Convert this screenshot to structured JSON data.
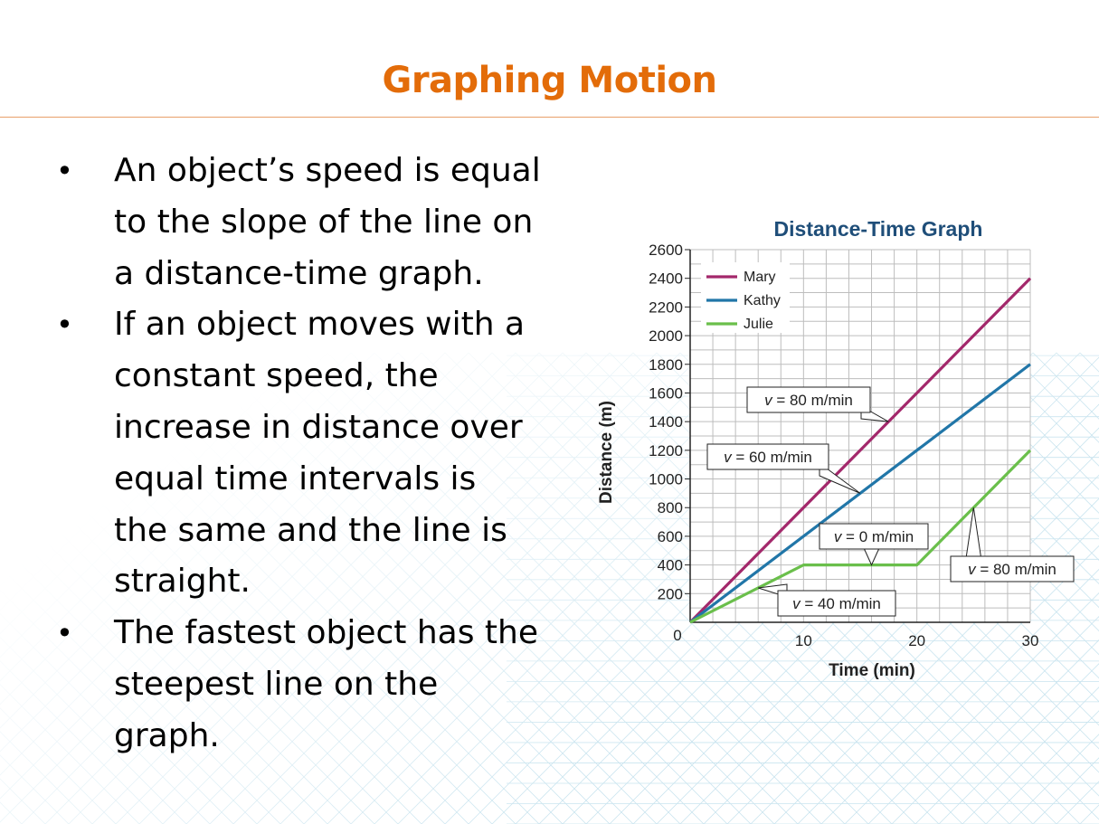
{
  "slide": {
    "title": "Graphing Motion",
    "bullets": [
      {
        "lines": [
          "An object’s speed is equal",
          "to the slope of the line on",
          "a distance-time graph."
        ]
      },
      {
        "lines": [
          "If an object moves with a",
          "constant speed, the",
          "increase in distance over",
          "equal time intervals is",
          "the same and the line is",
          "straight."
        ]
      },
      {
        "lines": [
          "The fastest object has the",
          "steepest line on the",
          "graph."
        ]
      }
    ],
    "bullet_glyph": "•"
  },
  "chart_data": {
    "type": "line",
    "title": "Distance-Time Graph",
    "xlabel": "Time (min)",
    "ylabel": "Distance (m)",
    "xlim": [
      0,
      30
    ],
    "ylim": [
      0,
      2600
    ],
    "x_ticks": [
      0,
      10,
      20,
      30
    ],
    "y_ticks": [
      200,
      400,
      600,
      800,
      1000,
      1200,
      1400,
      1600,
      1800,
      2000,
      2200,
      2400,
      2600
    ],
    "origin_label": "0",
    "grid": true,
    "legend_position": "top-left",
    "series": [
      {
        "name": "Mary",
        "color": "#a3286b",
        "x": [
          0,
          30
        ],
        "y": [
          0,
          2400
        ]
      },
      {
        "name": "Kathy",
        "color": "#2176a8",
        "x": [
          0,
          30
        ],
        "y": [
          0,
          1800
        ]
      },
      {
        "name": "Julie",
        "color": "#6abf4b",
        "x": [
          0,
          10,
          20,
          30
        ],
        "y": [
          0,
          400,
          400,
          1200
        ]
      }
    ],
    "annotations": [
      {
        "italic": "v",
        "rest": " = 80 m/min",
        "series": "Mary",
        "at": [
          17.5,
          1400
        ]
      },
      {
        "italic": "v",
        "rest": " = 60 m/min",
        "series": "Kathy",
        "at": [
          15,
          900
        ]
      },
      {
        "italic": "v",
        "rest": " = 0 m/min",
        "series": "Julie",
        "at": [
          16,
          400
        ]
      },
      {
        "italic": "v",
        "rest": " = 80 m/min",
        "series": "Julie",
        "at": [
          25,
          800
        ]
      },
      {
        "italic": "v",
        "rest": " = 40 m/min",
        "series": "Julie",
        "at": [
          6,
          240
        ]
      }
    ]
  }
}
